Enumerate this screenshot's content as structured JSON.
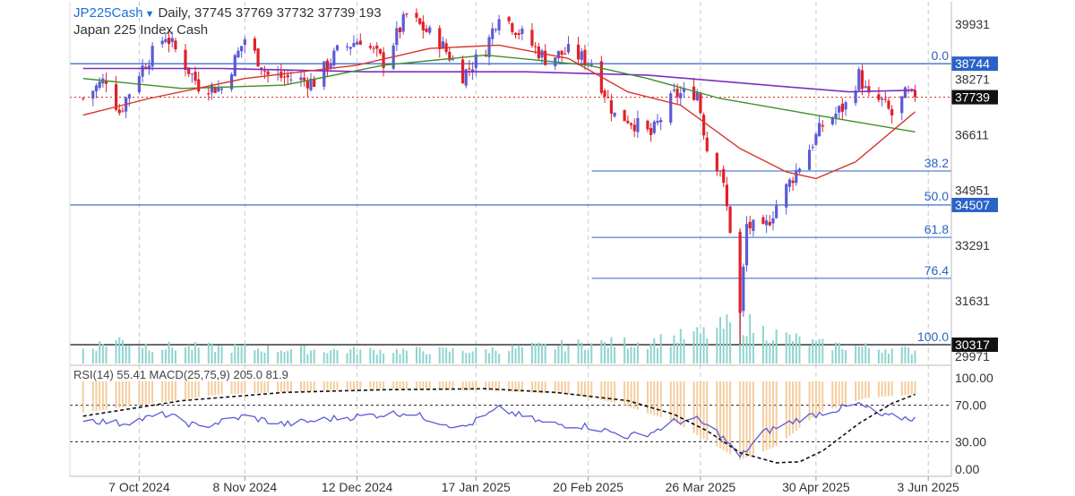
{
  "header": {
    "symbol": "JP225Cash",
    "timeframe": "Daily",
    "ohlcv": "37745 37769 37732 37739 193",
    "instrument_name": "Japan 225 Index Cash"
  },
  "indicator_label": "RSI(14) 55.41 MACD(25,75,9) 205.0 81.9",
  "colors": {
    "bull": "#5b5bd6",
    "bear": "#e0202a",
    "ma_fast": "#d9342b",
    "ma_slow": "#3f8f2a",
    "ma_long": "#7b2fbf",
    "fib": "#2a62c6",
    "rsi": "#5b5bd6",
    "macd_hist": "#f3c48d",
    "volume": "#8fd4cf"
  },
  "chart_data": {
    "type": "candlestick",
    "price_axis_ticks": [
      "39931",
      "38271",
      "36611",
      "34951",
      "33291",
      "31631",
      "29971"
    ],
    "price_ylim": [
      29700,
      40600
    ],
    "last_price": {
      "label": "37739",
      "value": 37739
    },
    "horizontal_lines": [
      {
        "label": "38744",
        "value": 38744,
        "color": "#2a62c6"
      },
      {
        "label": "34507",
        "value": 34507,
        "color": "#2a62c6"
      },
      {
        "label": "30317",
        "value": 30317,
        "color": "#111111"
      }
    ],
    "fibonacci": [
      {
        "label": "0.0",
        "value": 38744
      },
      {
        "label": "38.2",
        "value": 35525
      },
      {
        "label": "50.0",
        "value": 34530
      },
      {
        "label": "61.8",
        "value": 33536
      },
      {
        "label": "76.4",
        "value": 32306
      },
      {
        "label": "100.0",
        "value": 30317
      }
    ],
    "x_axis_labels": [
      "7 Oct 2024",
      "8 Nov 2024",
      "12 Dec 2024",
      "17 Jan 2025",
      "20 Feb 2025",
      "26 Mar 2025",
      "30 Apr 2025",
      "3 Jun 2025"
    ],
    "oscillator_ticks": [
      "100.00",
      "70.00",
      "30.00",
      "0.00"
    ],
    "oscillator_levels": [
      70,
      30
    ],
    "price_path": [
      {
        "day": "2024-09-20",
        "close": 37700
      },
      {
        "day": "2024-09-27",
        "close": 38300
      },
      {
        "day": "2024-10-01",
        "close": 37300
      },
      {
        "day": "2024-10-07",
        "close": 38500
      },
      {
        "day": "2024-10-15",
        "close": 39600
      },
      {
        "day": "2024-10-25",
        "close": 38100
      },
      {
        "day": "2024-11-01",
        "close": 38000
      },
      {
        "day": "2024-11-08",
        "close": 39500
      },
      {
        "day": "2024-11-15",
        "close": 38400
      },
      {
        "day": "2024-11-22",
        "close": 38300
      },
      {
        "day": "2024-11-29",
        "close": 38200
      },
      {
        "day": "2024-12-06",
        "close": 39100
      },
      {
        "day": "2024-12-13",
        "close": 39500
      },
      {
        "day": "2024-12-20",
        "close": 38800
      },
      {
        "day": "2024-12-27",
        "close": 40200
      },
      {
        "day": "2025-01-06",
        "close": 39400
      },
      {
        "day": "2025-01-13",
        "close": 38400
      },
      {
        "day": "2025-01-20",
        "close": 39200
      },
      {
        "day": "2025-01-24",
        "close": 40300
      },
      {
        "day": "2025-01-31",
        "close": 39600
      },
      {
        "day": "2025-02-07",
        "close": 38900
      },
      {
        "day": "2025-02-14",
        "close": 39100
      },
      {
        "day": "2025-02-21",
        "close": 38800
      },
      {
        "day": "2025-02-28",
        "close": 37200
      },
      {
        "day": "2025-03-04",
        "close": 37100
      },
      {
        "day": "2025-03-11",
        "close": 36600
      },
      {
        "day": "2025-03-18",
        "close": 37800
      },
      {
        "day": "2025-03-25",
        "close": 37900
      },
      {
        "day": "2025-03-28",
        "close": 36200
      },
      {
        "day": "2025-04-01",
        "close": 35600
      },
      {
        "day": "2025-04-04",
        "close": 33800
      },
      {
        "day": "2025-04-07",
        "close": 31200
      },
      {
        "day": "2025-04-09",
        "close": 33900
      },
      {
        "day": "2025-04-14",
        "close": 33700
      },
      {
        "day": "2025-04-18",
        "close": 34500
      },
      {
        "day": "2025-04-25",
        "close": 35700
      },
      {
        "day": "2025-05-02",
        "close": 36900
      },
      {
        "day": "2025-05-09",
        "close": 37500
      },
      {
        "day": "2025-05-13",
        "close": 38400
      },
      {
        "day": "2025-05-16",
        "close": 37700
      },
      {
        "day": "2025-05-20",
        "close": 37600
      },
      {
        "day": "2025-05-23",
        "close": 37200
      },
      {
        "day": "2025-05-27",
        "close": 37800
      },
      {
        "day": "2025-05-30",
        "close": 37739
      }
    ],
    "ma_fast": [
      {
        "day": "2024-09-20",
        "v": 37200
      },
      {
        "day": "2024-10-10",
        "v": 37700
      },
      {
        "day": "2024-11-08",
        "v": 38300
      },
      {
        "day": "2024-12-12",
        "v": 38700
      },
      {
        "day": "2025-01-03",
        "v": 39200
      },
      {
        "day": "2025-01-24",
        "v": 39300
      },
      {
        "day": "2025-02-14",
        "v": 38900
      },
      {
        "day": "2025-03-04",
        "v": 37900
      },
      {
        "day": "2025-03-20",
        "v": 37500
      },
      {
        "day": "2025-04-07",
        "v": 36200
      },
      {
        "day": "2025-04-21",
        "v": 35500
      },
      {
        "day": "2025-04-30",
        "v": 35300
      },
      {
        "day": "2025-05-12",
        "v": 35800
      },
      {
        "day": "2025-05-30",
        "v": 37300
      }
    ],
    "ma_slow": [
      {
        "day": "2024-09-20",
        "v": 38300
      },
      {
        "day": "2024-10-20",
        "v": 38000
      },
      {
        "day": "2024-11-20",
        "v": 38100
      },
      {
        "day": "2024-12-20",
        "v": 38700
      },
      {
        "day": "2025-01-20",
        "v": 39000
      },
      {
        "day": "2025-02-20",
        "v": 38700
      },
      {
        "day": "2025-03-10",
        "v": 38300
      },
      {
        "day": "2025-04-01",
        "v": 37700
      },
      {
        "day": "2025-04-30",
        "v": 37200
      },
      {
        "day": "2025-05-30",
        "v": 36700
      }
    ],
    "ma_long": [
      {
        "day": "2024-09-20",
        "v": 38600
      },
      {
        "day": "2024-11-01",
        "v": 38600
      },
      {
        "day": "2024-12-15",
        "v": 38500
      },
      {
        "day": "2025-02-01",
        "v": 38500
      },
      {
        "day": "2025-03-10",
        "v": 38400
      },
      {
        "day": "2025-04-15",
        "v": 38100
      },
      {
        "day": "2025-05-10",
        "v": 37900
      },
      {
        "day": "2025-05-30",
        "v": 37950
      }
    ],
    "volume": [
      {
        "day": "2024-09-20",
        "v": 0.35
      },
      {
        "day": "2024-10-01",
        "v": 0.55
      },
      {
        "day": "2024-10-10",
        "v": 0.4
      },
      {
        "day": "2024-11-08",
        "v": 0.35
      },
      {
        "day": "2024-12-12",
        "v": 0.3
      },
      {
        "day": "2025-01-17",
        "v": 0.3
      },
      {
        "day": "2025-02-20",
        "v": 0.45
      },
      {
        "day": "2025-03-10",
        "v": 0.5
      },
      {
        "day": "2025-03-28",
        "v": 0.7
      },
      {
        "day": "2025-04-07",
        "v": 1.0
      },
      {
        "day": "2025-04-14",
        "v": 0.75
      },
      {
        "day": "2025-04-30",
        "v": 0.45
      },
      {
        "day": "2025-05-30",
        "v": 0.3
      }
    ],
    "rsi": [
      {
        "day": "2024-09-20",
        "v": 55
      },
      {
        "day": "2024-10-01",
        "v": 50
      },
      {
        "day": "2024-10-15",
        "v": 60
      },
      {
        "day": "2024-10-25",
        "v": 46
      },
      {
        "day": "2024-11-08",
        "v": 58
      },
      {
        "day": "2024-11-20",
        "v": 49
      },
      {
        "day": "2024-12-06",
        "v": 56
      },
      {
        "day": "2024-12-27",
        "v": 62
      },
      {
        "day": "2025-01-13",
        "v": 45
      },
      {
        "day": "2025-01-24",
        "v": 66
      },
      {
        "day": "2025-02-07",
        "v": 50
      },
      {
        "day": "2025-02-20",
        "v": 47
      },
      {
        "day": "2025-03-04",
        "v": 36
      },
      {
        "day": "2025-03-11",
        "v": 40
      },
      {
        "day": "2025-03-18",
        "v": 52
      },
      {
        "day": "2025-03-25",
        "v": 54
      },
      {
        "day": "2025-04-01",
        "v": 38
      },
      {
        "day": "2025-04-07",
        "v": 13
      },
      {
        "day": "2025-04-14",
        "v": 40
      },
      {
        "day": "2025-04-25",
        "v": 55
      },
      {
        "day": "2025-05-02",
        "v": 62
      },
      {
        "day": "2025-05-13",
        "v": 71
      },
      {
        "day": "2025-05-20",
        "v": 58
      },
      {
        "day": "2025-05-30",
        "v": 55.41
      }
    ],
    "macd_signal": [
      {
        "day": "2024-09-20",
        "v": 58
      },
      {
        "day": "2024-10-20",
        "v": 75
      },
      {
        "day": "2024-11-20",
        "v": 84
      },
      {
        "day": "2024-12-20",
        "v": 87
      },
      {
        "day": "2025-01-20",
        "v": 88
      },
      {
        "day": "2025-02-10",
        "v": 84
      },
      {
        "day": "2025-03-04",
        "v": 75
      },
      {
        "day": "2025-03-18",
        "v": 60
      },
      {
        "day": "2025-03-28",
        "v": 42
      },
      {
        "day": "2025-04-07",
        "v": 18
      },
      {
        "day": "2025-04-18",
        "v": 7
      },
      {
        "day": "2025-04-25",
        "v": 8
      },
      {
        "day": "2025-05-02",
        "v": 20
      },
      {
        "day": "2025-05-13",
        "v": 50
      },
      {
        "day": "2025-05-23",
        "v": 72
      },
      {
        "day": "2025-05-30",
        "v": 81.9
      }
    ],
    "macd_histogram": [
      {
        "day": "2024-09-20",
        "v": 62
      },
      {
        "day": "2024-11-01",
        "v": 82
      },
      {
        "day": "2024-12-20",
        "v": 88
      },
      {
        "day": "2025-01-20",
        "v": 86
      },
      {
        "day": "2025-02-15",
        "v": 82
      },
      {
        "day": "2025-03-01",
        "v": 72
      },
      {
        "day": "2025-03-18",
        "v": 52
      },
      {
        "day": "2025-04-07",
        "v": 10
      },
      {
        "day": "2025-04-18",
        "v": 25
      },
      {
        "day": "2025-05-01",
        "v": 62
      },
      {
        "day": "2025-05-15",
        "v": 78
      },
      {
        "day": "2025-05-30",
        "v": 82
      }
    ]
  }
}
